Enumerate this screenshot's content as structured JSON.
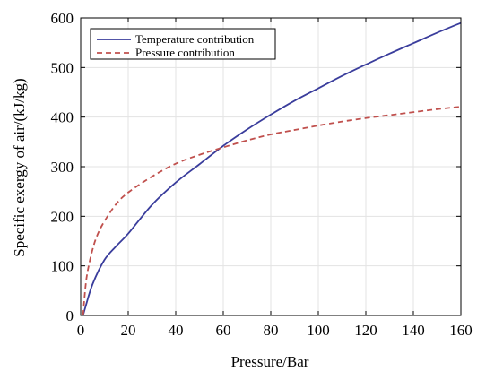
{
  "chart_data": {
    "type": "line",
    "title": "",
    "xlabel": "Pressure/Bar",
    "ylabel": "Specific exergy of air/(kJ/kg)",
    "xlim": [
      0,
      160
    ],
    "ylim": [
      0,
      600
    ],
    "xticks": [
      0,
      20,
      40,
      60,
      80,
      100,
      120,
      140,
      160
    ],
    "yticks": [
      0,
      100,
      200,
      300,
      400,
      500,
      600
    ],
    "grid": true,
    "legend_position": "top-left",
    "series": [
      {
        "name": "Temperature contribution",
        "color": "#3a3d9c",
        "style": "solid",
        "x": [
          1,
          2,
          5,
          10,
          15,
          20,
          30,
          40,
          50,
          60,
          70,
          80,
          90,
          100,
          110,
          120,
          130,
          140,
          150,
          160
        ],
        "y": [
          0,
          17,
          63,
          112,
          140,
          165,
          223,
          268,
          305,
          342,
          375,
          405,
          433,
          458,
          483,
          506,
          528,
          549,
          570,
          590
        ]
      },
      {
        "name": "Pressure contribution",
        "color": "#c0504d",
        "style": "dashed",
        "x": [
          1,
          2,
          3,
          5,
          7,
          10,
          15,
          20,
          30,
          40,
          50,
          60,
          70,
          80,
          90,
          100,
          110,
          120,
          130,
          140,
          150,
          160
        ],
        "y": [
          0,
          57,
          91,
          133,
          162,
          190,
          225,
          248,
          280,
          306,
          324,
          339,
          353,
          365,
          374,
          383,
          391,
          398,
          404,
          410,
          416,
          421
        ]
      }
    ]
  }
}
